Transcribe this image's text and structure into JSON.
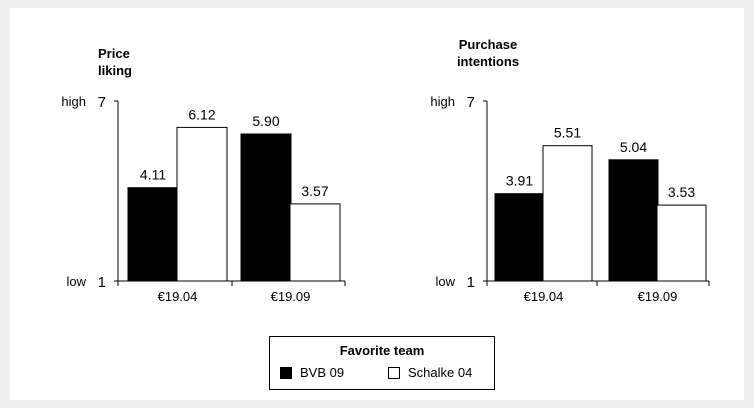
{
  "chart_data": [
    {
      "type": "bar",
      "title": "Price liking",
      "title_lines": [
        "Price",
        "liking"
      ],
      "categories": [
        "€19.04",
        "€19.09"
      ],
      "ylim": [
        1,
        7
      ],
      "ytick_labels": {
        "top": "7",
        "bottom": "1"
      },
      "y_anchor_labels": {
        "top": "high",
        "bottom": "low"
      },
      "series": [
        {
          "name": "BVB 09",
          "values": [
            4.11,
            5.9
          ],
          "labels": [
            "4.11",
            "5.90"
          ]
        },
        {
          "name": "Schalke 04",
          "values": [
            6.12,
            3.57
          ],
          "labels": [
            "6.12",
            "3.57"
          ]
        }
      ]
    },
    {
      "type": "bar",
      "title": "Purchase intentions",
      "title_lines": [
        "Purchase",
        "intentions"
      ],
      "categories": [
        "€19.04",
        "€19.09"
      ],
      "ylim": [
        1,
        7
      ],
      "ytick_labels": {
        "top": "7",
        "bottom": "1"
      },
      "y_anchor_labels": {
        "top": "high",
        "bottom": "low"
      },
      "series": [
        {
          "name": "BVB 09",
          "values": [
            3.91,
            5.04
          ],
          "labels": [
            "3.91",
            "5.04"
          ]
        },
        {
          "name": "Schalke 04",
          "values": [
            5.51,
            3.53
          ],
          "labels": [
            "5.51",
            "3.53"
          ]
        }
      ]
    }
  ],
  "legend": {
    "title": "Favorite team",
    "items": [
      {
        "name": "BVB 09",
        "fill": "#000000"
      },
      {
        "name": "Schalke 04",
        "fill": "#ffffff"
      }
    ]
  },
  "colors": {
    "bvb": "#000000",
    "schalke": "#ffffff",
    "background": "#efefef",
    "card": "#ffffff"
  }
}
